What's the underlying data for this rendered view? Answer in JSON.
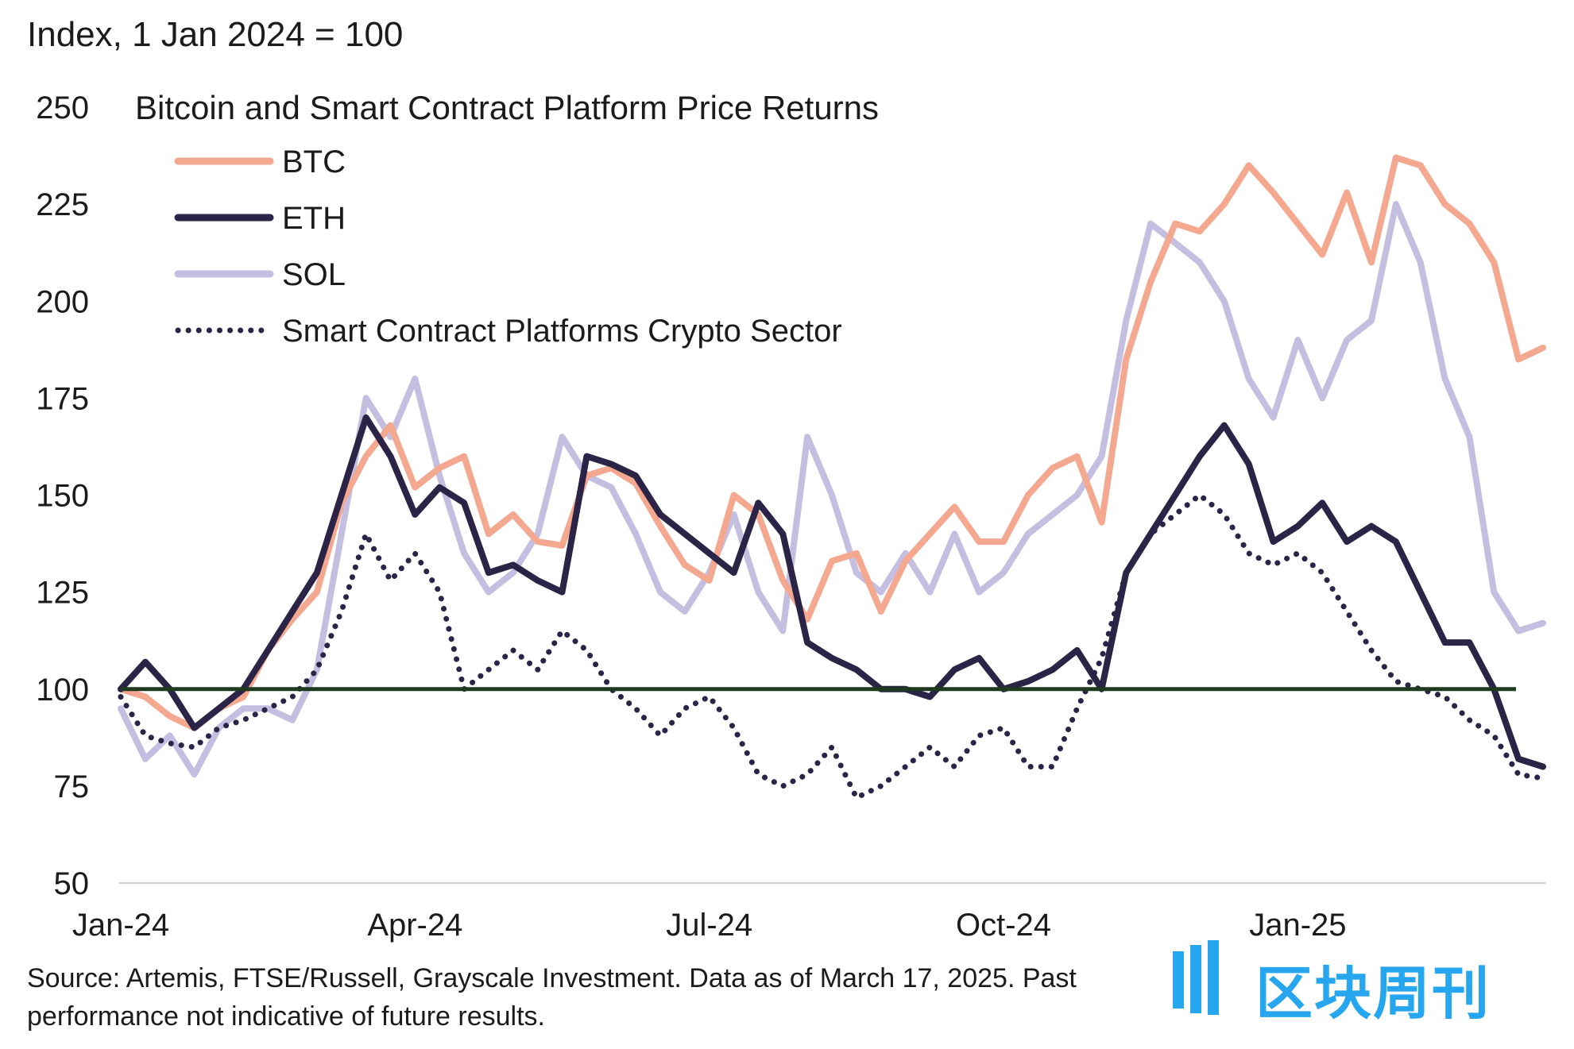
{
  "chart_data": {
    "type": "line",
    "title": "Bitcoin and Smart Contract Platform Price Returns",
    "ylabel": "Index, 1 Jan 2024 = 100",
    "xlabel": "",
    "ylim": [
      50,
      250
    ],
    "yticks": [
      50,
      75,
      100,
      125,
      150,
      175,
      200,
      225,
      250
    ],
    "xlim": [
      0,
      14.5
    ],
    "xticks": [
      {
        "x": 0,
        "label": "Jan-24"
      },
      {
        "x": 3,
        "label": "Apr-24"
      },
      {
        "x": 6,
        "label": "Jul-24"
      },
      {
        "x": 9,
        "label": "Oct-24"
      },
      {
        "x": 12,
        "label": "Jan-25"
      }
    ],
    "reference_line": {
      "y": 100,
      "color": "#1f3a1f"
    },
    "series": [
      {
        "name": "BTC",
        "color": "#f5a890",
        "style": "solid",
        "x": [
          0,
          0.25,
          0.5,
          0.75,
          1,
          1.25,
          1.5,
          1.75,
          2,
          2.25,
          2.5,
          2.75,
          3,
          3.25,
          3.5,
          3.75,
          4,
          4.25,
          4.5,
          4.75,
          5,
          5.25,
          5.5,
          5.75,
          6,
          6.25,
          6.5,
          6.75,
          7,
          7.25,
          7.5,
          7.75,
          8,
          8.25,
          8.5,
          8.75,
          9,
          9.25,
          9.5,
          9.75,
          10,
          10.25,
          10.5,
          10.75,
          11,
          11.25,
          11.5,
          11.75,
          12,
          12.25,
          12.5,
          12.75,
          13,
          13.25,
          13.5,
          13.75,
          14,
          14.25,
          14.5
        ],
        "values": [
          100,
          98,
          93,
          90,
          95,
          98,
          110,
          118,
          125,
          148,
          160,
          168,
          152,
          157,
          160,
          140,
          145,
          138,
          137,
          155,
          157,
          153,
          142,
          132,
          128,
          150,
          145,
          128,
          118,
          133,
          135,
          120,
          133,
          140,
          147,
          138,
          138,
          150,
          157,
          160,
          143,
          185,
          205,
          220,
          218,
          225,
          235,
          228,
          220,
          212,
          228,
          210,
          237,
          235,
          225,
          220,
          210,
          185,
          188
        ]
      },
      {
        "name": "ETH",
        "color": "#2b2447",
        "style": "solid",
        "x": [
          0,
          0.25,
          0.5,
          0.75,
          1,
          1.25,
          1.5,
          1.75,
          2,
          2.25,
          2.5,
          2.75,
          3,
          3.25,
          3.5,
          3.75,
          4,
          4.25,
          4.5,
          4.75,
          5,
          5.25,
          5.5,
          5.75,
          6,
          6.25,
          6.5,
          6.75,
          7,
          7.25,
          7.5,
          7.75,
          8,
          8.25,
          8.5,
          8.75,
          9,
          9.25,
          9.5,
          9.75,
          10,
          10.25,
          10.5,
          10.75,
          11,
          11.25,
          11.5,
          11.75,
          12,
          12.25,
          12.5,
          12.75,
          13,
          13.25,
          13.5,
          13.75,
          14,
          14.25,
          14.5
        ],
        "values": [
          100,
          107,
          100,
          90,
          95,
          100,
          110,
          120,
          130,
          150,
          170,
          160,
          145,
          152,
          148,
          130,
          132,
          128,
          125,
          160,
          158,
          155,
          145,
          140,
          135,
          130,
          148,
          140,
          112,
          108,
          105,
          100,
          100,
          98,
          105,
          108,
          100,
          102,
          105,
          110,
          100,
          130,
          140,
          150,
          160,
          168,
          158,
          138,
          142,
          148,
          138,
          142,
          138,
          125,
          112,
          112,
          100,
          82,
          80
        ]
      },
      {
        "name": "SOL",
        "color": "#c4bfe0",
        "style": "solid",
        "x": [
          0,
          0.25,
          0.5,
          0.75,
          1,
          1.25,
          1.5,
          1.75,
          2,
          2.25,
          2.5,
          2.75,
          3,
          3.25,
          3.5,
          3.75,
          4,
          4.25,
          4.5,
          4.75,
          5,
          5.25,
          5.5,
          5.75,
          6,
          6.25,
          6.5,
          6.75,
          7,
          7.25,
          7.5,
          7.75,
          8,
          8.25,
          8.5,
          8.75,
          9,
          9.25,
          9.5,
          9.75,
          10,
          10.25,
          10.5,
          10.75,
          11,
          11.25,
          11.5,
          11.75,
          12,
          12.25,
          12.5,
          12.75,
          13,
          13.25,
          13.5,
          13.75,
          14,
          14.25,
          14.5
        ],
        "values": [
          95,
          82,
          88,
          78,
          90,
          95,
          95,
          92,
          105,
          140,
          175,
          165,
          180,
          155,
          135,
          125,
          130,
          140,
          165,
          155,
          152,
          140,
          125,
          120,
          130,
          145,
          125,
          115,
          165,
          150,
          130,
          125,
          135,
          125,
          140,
          125,
          130,
          140,
          145,
          150,
          160,
          195,
          220,
          215,
          210,
          200,
          180,
          170,
          190,
          175,
          190,
          195,
          225,
          210,
          180,
          165,
          125,
          115,
          117
        ]
      },
      {
        "name": "Smart Contract Platforms Crypto Sector",
        "color": "#2b2447",
        "style": "dotted",
        "x": [
          0,
          0.25,
          0.5,
          0.75,
          1,
          1.25,
          1.5,
          1.75,
          2,
          2.25,
          2.5,
          2.75,
          3,
          3.25,
          3.5,
          3.75,
          4,
          4.25,
          4.5,
          4.75,
          5,
          5.25,
          5.5,
          5.75,
          6,
          6.25,
          6.5,
          6.75,
          7,
          7.25,
          7.5,
          7.75,
          8,
          8.25,
          8.5,
          8.75,
          9,
          9.25,
          9.5,
          9.75,
          10,
          10.25,
          10.5,
          10.75,
          11,
          11.25,
          11.5,
          11.75,
          12,
          12.25,
          12.5,
          12.75,
          13,
          13.25,
          13.5,
          13.75,
          14,
          14.25,
          14.5
        ],
        "values": [
          98,
          88,
          86,
          85,
          90,
          92,
          95,
          98,
          105,
          120,
          140,
          128,
          135,
          125,
          100,
          105,
          110,
          105,
          115,
          110,
          100,
          95,
          88,
          95,
          98,
          90,
          78,
          75,
          78,
          85,
          72,
          75,
          80,
          85,
          80,
          88,
          90,
          80,
          80,
          95,
          108,
          130,
          140,
          145,
          150,
          145,
          135,
          132,
          135,
          130,
          120,
          110,
          102,
          100,
          98,
          92,
          88,
          78,
          77
        ]
      }
    ],
    "legend": {
      "position": "top-left",
      "items": [
        "BTC",
        "ETH",
        "SOL",
        "Smart Contract Platforms Crypto Sector"
      ]
    }
  },
  "footer": {
    "source": "Source: Artemis, FTSE/Russell, Grayscale Investment. Data as of March 17, 2025. Past performance not indicative of future results."
  },
  "watermark": {
    "text": "区块周刊",
    "color": "#0096eb"
  }
}
